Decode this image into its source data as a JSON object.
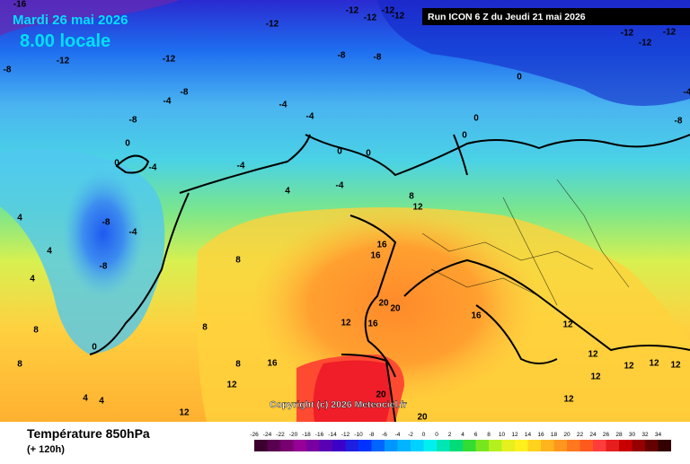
{
  "map": {
    "date": "Mardi 26 mai 2026",
    "time": "8.00 locale",
    "run": "Run ICON 6 Z du Jeudi 21 mai 2026",
    "copyright": "Copyright (c) 2026 Meteociel.fr",
    "contour_labels": [
      "-16",
      "-12",
      "-12",
      "-12",
      "-12",
      "-12",
      "-12",
      "-12",
      "-12",
      "-12",
      "-12",
      "-8",
      "-8",
      "-8",
      "-8",
      "-8",
      "-8",
      "-8",
      "-8",
      "-4",
      "-4",
      "-4",
      "-4",
      "-4",
      "-4",
      "-4",
      "-4",
      "0",
      "0",
      "0",
      "0",
      "0",
      "0",
      "0",
      "0",
      "4",
      "4",
      "4",
      "4",
      "4",
      "4",
      "8",
      "8",
      "8",
      "8",
      "8",
      "8",
      "12",
      "12",
      "12",
      "12",
      "12",
      "12",
      "12",
      "12",
      "12",
      "12",
      "12",
      "16",
      "16",
      "16",
      "16",
      "16",
      "20",
      "20",
      "20",
      "20"
    ]
  },
  "footer": {
    "title": "Température 850hPa",
    "subtitle": "(+ 120h)"
  },
  "colorbar": [
    {
      "label": "-26",
      "color": "#3c0030"
    },
    {
      "label": "-24",
      "color": "#5a0050"
    },
    {
      "label": "-22",
      "color": "#780070"
    },
    {
      "label": "-20",
      "color": "#960096"
    },
    {
      "label": "-18",
      "color": "#7800a0"
    },
    {
      "label": "-16",
      "color": "#5a00b4"
    },
    {
      "label": "-14",
      "color": "#3c00c8"
    },
    {
      "label": "-12",
      "color": "#1e1ee0"
    },
    {
      "label": "-10",
      "color": "#0032ff"
    },
    {
      "label": "-8",
      "color": "#0064ff"
    },
    {
      "label": "-6",
      "color": "#0096ff"
    },
    {
      "label": "-4",
      "color": "#00b4ff"
    },
    {
      "label": "-2",
      "color": "#00d2ff"
    },
    {
      "label": "0",
      "color": "#00f0f0"
    },
    {
      "label": "0",
      "color": "#00e6b4"
    },
    {
      "label": "2",
      "color": "#00dc78"
    },
    {
      "label": "4",
      "color": "#32dc32"
    },
    {
      "label": "6",
      "color": "#78e61e"
    },
    {
      "label": "8",
      "color": "#b4f01e"
    },
    {
      "label": "10",
      "color": "#e6f01e"
    },
    {
      "label": "12",
      "color": "#fff01e"
    },
    {
      "label": "14",
      "color": "#ffd21e"
    },
    {
      "label": "16",
      "color": "#ffb41e"
    },
    {
      "label": "18",
      "color": "#ff961e"
    },
    {
      "label": "20",
      "color": "#ff781e"
    },
    {
      "label": "22",
      "color": "#ff5a1e"
    },
    {
      "label": "24",
      "color": "#ff3c3c"
    },
    {
      "label": "26",
      "color": "#e61e1e"
    },
    {
      "label": "28",
      "color": "#c80000"
    },
    {
      "label": "30",
      "color": "#960000"
    },
    {
      "label": "32",
      "color": "#640000"
    },
    {
      "label": "34",
      "color": "#320000"
    }
  ]
}
